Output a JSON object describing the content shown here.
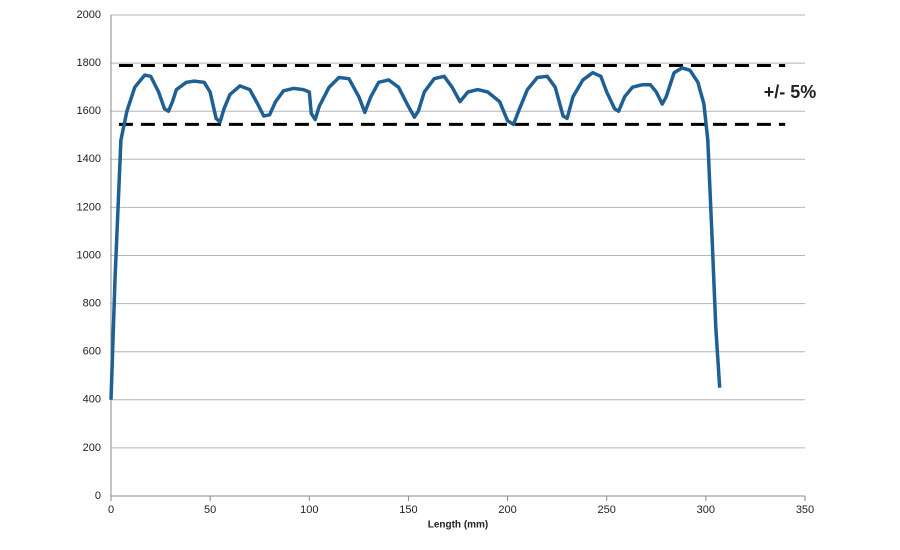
{
  "chart_data": {
    "type": "line",
    "x_label": "Length (mm)",
    "annotation": "+/- 5%",
    "xlim": [
      0,
      350
    ],
    "xticks": [
      0,
      50,
      100,
      150,
      200,
      250,
      300,
      350
    ],
    "ylim": [
      0,
      2000
    ],
    "yticks": [
      0,
      200,
      400,
      600,
      800,
      1000,
      1200,
      1400,
      1600,
      1800,
      2000
    ],
    "grid": true,
    "hlines": [
      {
        "y": 1790,
        "x": [
          4,
          340
        ]
      },
      {
        "y": 1545,
        "x": [
          4,
          340
        ]
      }
    ],
    "series": [
      {
        "color": "#1f5f94",
        "x": [
          0,
          2,
          5,
          8,
          12,
          17,
          20,
          24,
          27,
          29,
          31,
          33,
          38,
          42,
          47,
          50,
          53,
          55,
          57,
          60,
          65,
          70,
          74,
          77,
          80,
          83,
          87,
          92,
          97,
          100,
          101,
          103,
          105,
          110,
          115,
          120,
          125,
          128,
          131,
          135,
          140,
          145,
          150,
          153,
          155,
          158,
          163,
          168,
          172,
          176,
          180,
          185,
          190,
          196,
          200,
          203,
          206,
          210,
          215,
          220,
          224,
          228,
          230,
          233,
          238,
          243,
          247,
          250,
          254,
          256,
          259,
          263,
          268,
          272,
          275,
          278,
          280,
          284,
          288,
          292,
          296,
          299,
          301,
          303,
          305,
          307
        ],
        "values": [
          400,
          900,
          1480,
          1600,
          1700,
          1750,
          1745,
          1680,
          1610,
          1600,
          1640,
          1690,
          1720,
          1725,
          1720,
          1680,
          1570,
          1555,
          1610,
          1670,
          1705,
          1690,
          1630,
          1580,
          1585,
          1640,
          1685,
          1695,
          1690,
          1680,
          1590,
          1565,
          1620,
          1700,
          1740,
          1735,
          1660,
          1595,
          1660,
          1720,
          1730,
          1700,
          1620,
          1575,
          1600,
          1680,
          1735,
          1745,
          1700,
          1640,
          1680,
          1690,
          1680,
          1640,
          1560,
          1545,
          1610,
          1690,
          1740,
          1745,
          1700,
          1580,
          1570,
          1660,
          1730,
          1760,
          1745,
          1680,
          1610,
          1600,
          1660,
          1700,
          1710,
          1710,
          1680,
          1630,
          1660,
          1760,
          1780,
          1770,
          1720,
          1630,
          1480,
          1100,
          700,
          450
        ]
      }
    ]
  }
}
